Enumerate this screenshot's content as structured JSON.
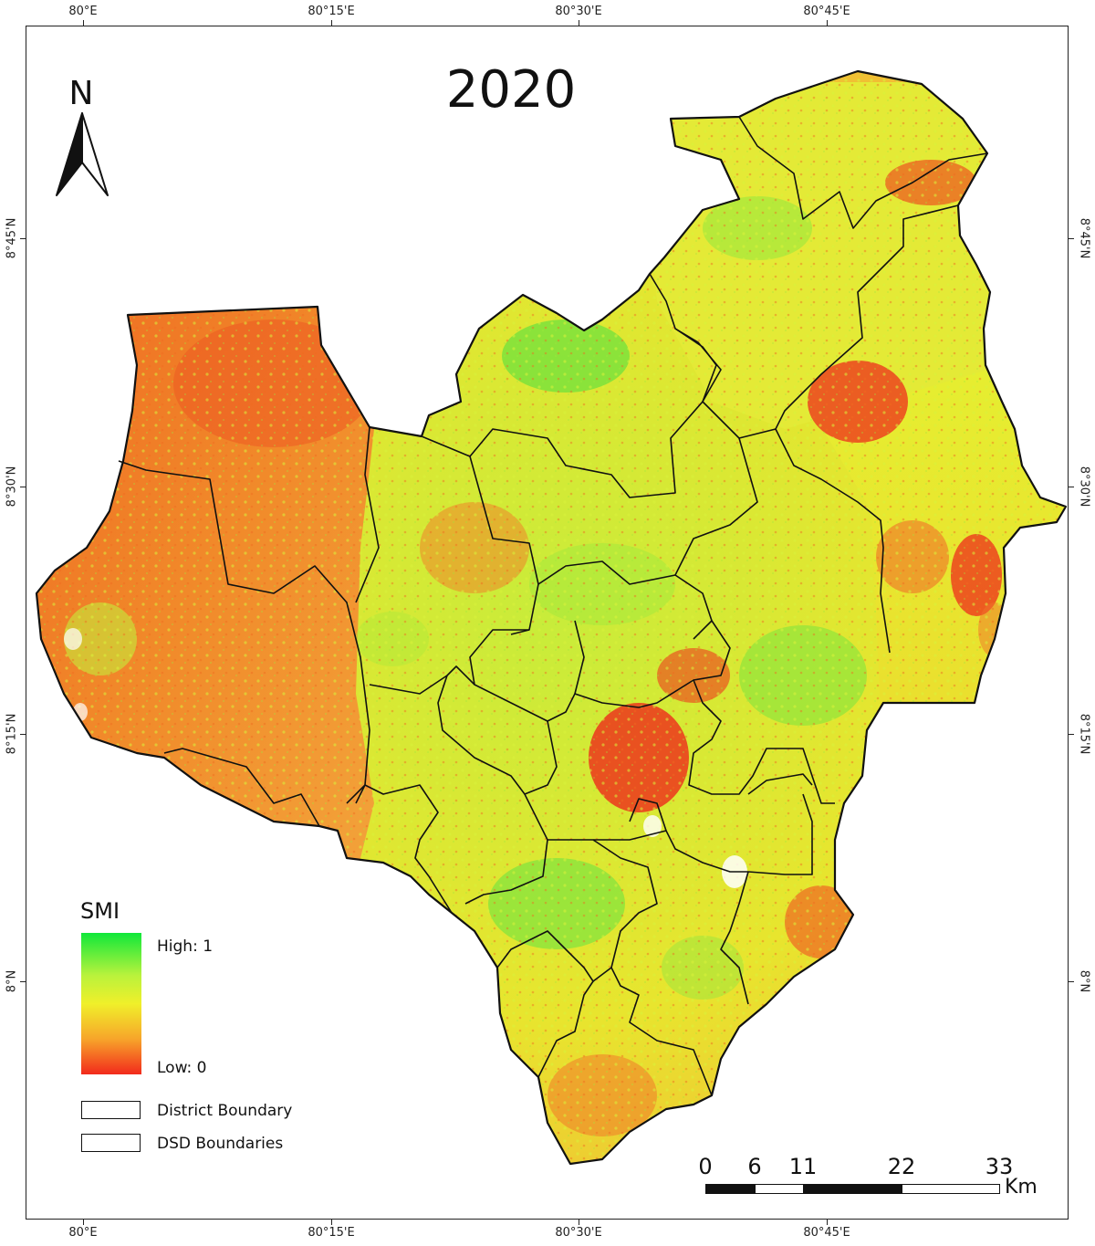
{
  "map": {
    "title": "2020",
    "north_label": "N",
    "coords": {
      "longitudes": [
        "80°E",
        "80°15'E",
        "80°30'E",
        "80°45'E"
      ],
      "latitudes": [
        "8°45'N",
        "8°30'N",
        "8°15'N",
        "8°N"
      ]
    }
  },
  "legend": {
    "title": "SMI",
    "high_label": "High: 1",
    "low_label": "Low: 0",
    "district_label": "District Boundary",
    "dsd_label": "DSD Boundaries"
  },
  "scale_bar": {
    "labels": [
      "0",
      "6",
      "11",
      "22",
      "33"
    ],
    "unit": "Km"
  },
  "colors": {
    "high": "#10e83a",
    "mid": "#f0f02a",
    "low": "#f22a1c",
    "boundary": "#111111"
  },
  "icons": [
    "north-arrow-icon"
  ]
}
